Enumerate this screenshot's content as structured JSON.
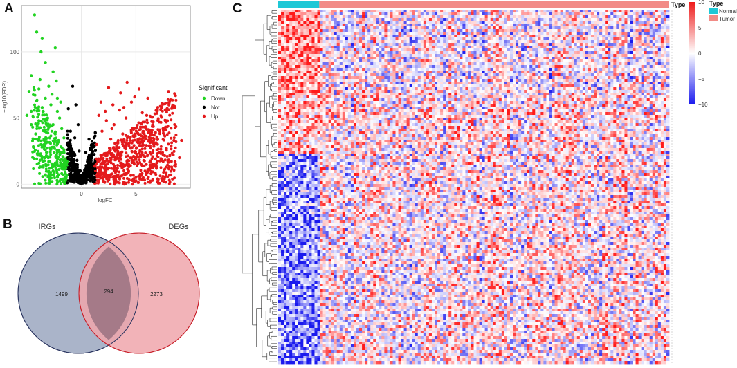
{
  "panels": {
    "a": "A",
    "b": "B",
    "c": "C"
  },
  "colors": {
    "down": "#21d321",
    "not": "#000000",
    "up": "#e41a1c",
    "normal": "#1ec8d6",
    "tumor": "#f28b86",
    "irgs_fill": "#aab4c9",
    "degs_fill": "#f0a6ab",
    "overlap_fill": "#a57a88",
    "hm_low": "#1a1aee",
    "hm_mid": "#ffffff",
    "hm_high": "#ee1a1a"
  },
  "chart_data": [
    {
      "type": "scatter",
      "name": "volcano",
      "title": "",
      "xlabel": "logFC",
      "ylabel": "−log10(FDR)",
      "xlim": [
        -5.5,
        10
      ],
      "ylim": [
        -3,
        135
      ],
      "xticks": [
        {
          "value": 0,
          "label": "0"
        },
        {
          "value": 5,
          "label": "5"
        }
      ],
      "yticks": [
        {
          "value": 0,
          "label": "0"
        },
        {
          "value": 50,
          "label": "50"
        },
        {
          "value": 100,
          "label": "100"
        }
      ],
      "legend": {
        "title": "Significant",
        "position": "right",
        "entries": [
          {
            "key": "down",
            "label": "Down"
          },
          {
            "key": "not",
            "label": "Not"
          },
          {
            "key": "up",
            "label": "Up"
          }
        ]
      },
      "series": [
        {
          "name": "Down",
          "points": [
            [
              -4.3,
              128
            ],
            [
              -4.1,
              115
            ],
            [
              -3.6,
              110
            ],
            [
              -2.4,
              103
            ],
            [
              -3.7,
              100
            ],
            [
              -3.3,
              92
            ],
            [
              -2.6,
              85
            ],
            [
              -4.6,
              82
            ],
            [
              -3.8,
              79
            ],
            [
              -2.3,
              78
            ],
            [
              -3.0,
              74
            ],
            [
              -3.9,
              72
            ],
            [
              -4.8,
              70
            ],
            [
              -2.7,
              68
            ],
            [
              -3.3,
              65
            ],
            [
              -4.1,
              63
            ],
            [
              -1.9,
              62
            ],
            [
              -2.8,
              60
            ],
            [
              -3.6,
              58
            ],
            [
              -4.6,
              55
            ],
            [
              -5.0,
              52
            ],
            [
              -2.2,
              55
            ],
            [
              -3.1,
              50
            ],
            [
              -3.9,
              48
            ],
            [
              -2.6,
              45
            ],
            [
              -1.8,
              42
            ],
            [
              -3.4,
              40
            ],
            [
              -4.2,
              38
            ],
            [
              -2.9,
              35
            ],
            [
              -2.1,
              33
            ],
            [
              -3.7,
              30
            ],
            [
              -2.5,
              28
            ],
            [
              -1.6,
              26
            ],
            [
              -3.2,
              24
            ],
            [
              -4.0,
              22
            ],
            [
              -2.3,
              20
            ],
            [
              -1.7,
              18
            ],
            [
              -2.9,
              17
            ],
            [
              -2.0,
              14
            ],
            [
              -3.5,
              13
            ],
            [
              -1.5,
              12
            ],
            [
              -2.6,
              10
            ],
            [
              -1.8,
              8
            ],
            [
              -2.2,
              6
            ],
            [
              -1.4,
              5
            ],
            [
              -3.0,
              9
            ],
            [
              -3.8,
              18
            ],
            [
              -4.4,
              28
            ],
            [
              -4.6,
              45
            ],
            [
              -2.0,
              50
            ],
            [
              -1.6,
              35
            ],
            [
              -2.4,
              38
            ],
            [
              -3.0,
              43
            ],
            [
              -3.5,
              55
            ],
            [
              -2.2,
              65
            ]
          ]
        },
        {
          "name": "Not",
          "points": [
            [
              -0.8,
              74
            ],
            [
              -0.5,
              60
            ],
            [
              -1.2,
              57
            ],
            [
              -0.3,
              45
            ],
            [
              -1.0,
              40
            ],
            [
              -0.6,
              35
            ],
            [
              -1.3,
              30
            ],
            [
              -0.2,
              25
            ],
            [
              -0.9,
              22
            ],
            [
              -0.4,
              18
            ],
            [
              -1.1,
              15
            ],
            [
              -0.7,
              12
            ],
            [
              -0.1,
              10
            ],
            [
              -0.5,
              8
            ],
            [
              -1.0,
              6
            ],
            [
              -0.3,
              5
            ],
            [
              0.0,
              4
            ],
            [
              0.3,
              6
            ],
            [
              0.6,
              8
            ],
            [
              -0.6,
              3
            ],
            [
              0.2,
              2
            ],
            [
              -0.2,
              1
            ],
            [
              0.4,
              1
            ],
            [
              -0.8,
              2
            ],
            [
              0.8,
              10
            ],
            [
              0.5,
              14
            ],
            [
              0.9,
              20
            ],
            [
              0.4,
              24
            ],
            [
              1.0,
              30
            ],
            [
              0.7,
              34
            ],
            [
              1.2,
              2
            ],
            [
              -1.3,
              1
            ],
            [
              0.1,
              3
            ],
            [
              -0.4,
              2
            ]
          ]
        },
        {
          "name": "Up",
          "points": [
            [
              4.2,
              77
            ],
            [
              8.0,
              70
            ],
            [
              5.3,
              72
            ],
            [
              3.6,
              69
            ],
            [
              2.5,
              73
            ],
            [
              6.1,
              65
            ],
            [
              4.6,
              62
            ],
            [
              2.9,
              60
            ],
            [
              7.0,
              58
            ],
            [
              3.5,
              56
            ],
            [
              5.6,
              54
            ],
            [
              1.6,
              52
            ],
            [
              4.1,
              50
            ],
            [
              2.3,
              48
            ],
            [
              6.6,
              47
            ],
            [
              3.0,
              45
            ],
            [
              5.1,
              43
            ],
            [
              7.5,
              42
            ],
            [
              1.9,
              40
            ],
            [
              3.8,
              38
            ],
            [
              5.8,
              36
            ],
            [
              8.5,
              33
            ],
            [
              2.7,
              34
            ],
            [
              4.4,
              31
            ],
            [
              6.3,
              29
            ],
            [
              1.4,
              30
            ],
            [
              3.3,
              27
            ],
            [
              5.4,
              25
            ],
            [
              7.2,
              24
            ],
            [
              2.1,
              23
            ],
            [
              4.8,
              21
            ],
            [
              6.8,
              19
            ],
            [
              9.0,
              20
            ],
            [
              1.7,
              18
            ],
            [
              3.6,
              16
            ],
            [
              5.6,
              14
            ],
            [
              8.0,
              12
            ],
            [
              2.5,
              12
            ],
            [
              4.3,
              10
            ],
            [
              6.4,
              8
            ],
            [
              1.5,
              8
            ],
            [
              3.1,
              6
            ],
            [
              5.0,
              5
            ],
            [
              7.0,
              4
            ],
            [
              2.0,
              3
            ],
            [
              9.2,
              33
            ],
            [
              8.6,
              17
            ],
            [
              4.9,
              66
            ],
            [
              3.9,
              58
            ],
            [
              6.0,
              52
            ],
            [
              2.8,
              42
            ],
            [
              7.8,
              47
            ],
            [
              5.2,
              34
            ],
            [
              3.3,
              22
            ],
            [
              6.9,
              12
            ],
            [
              1.8,
              62
            ],
            [
              2.2,
              55
            ]
          ]
        }
      ]
    },
    {
      "type": "venn",
      "name": "venn",
      "sets": [
        {
          "label": "IRGs",
          "only": 1499
        },
        {
          "label": "DEGs",
          "only": 2273
        }
      ],
      "intersection": 294
    },
    {
      "type": "heatmap",
      "name": "heatmap",
      "annotation_title": "Type",
      "annotation_groups": [
        {
          "key": "normal",
          "label": "Normal",
          "fraction": 0.105
        },
        {
          "key": "tumor",
          "label": "Tumor",
          "fraction": 0.895
        }
      ],
      "color_scale": {
        "min": -10,
        "max": 10,
        "ticks": [
          10,
          5,
          0,
          -5,
          -10
        ],
        "tick_labels": [
          "10",
          "5",
          "0",
          "−5",
          "−10"
        ]
      },
      "legend_titles": [
        "Type",
        "Type"
      ]
    }
  ]
}
